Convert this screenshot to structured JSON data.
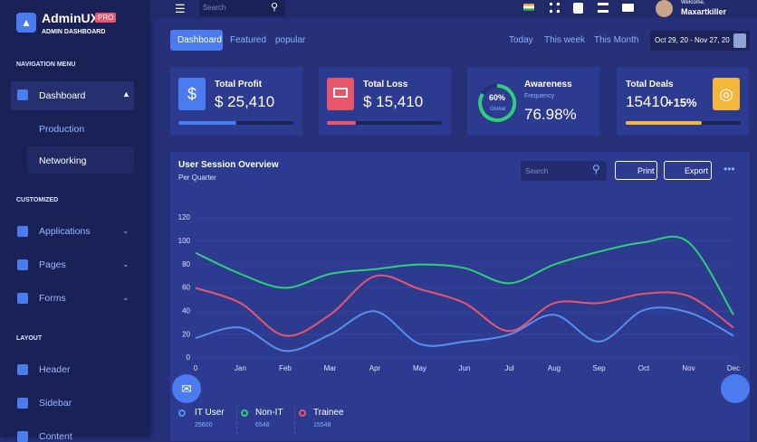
{
  "sidebar": {
    "brand": "AdminUX",
    "badge": "PRO",
    "subtitle": "ADMIN DASHBOARD",
    "sections": [
      {
        "title": "NAVIGATION MENU",
        "items": [
          "Dashboard",
          "Production",
          "Networking"
        ]
      },
      {
        "title": "CUSTOMIZED",
        "items": [
          "Applications",
          "Pages",
          "Forms"
        ]
      },
      {
        "title": "LAYOUT",
        "items": [
          "Header",
          "Sidebar",
          "Content"
        ]
      }
    ]
  },
  "topbar": {
    "search": "Search",
    "welcome": "Welcome,",
    "user": "Maxartkiller"
  },
  "tabs": [
    "Dashboard",
    "Featured",
    "popular"
  ],
  "ranges": [
    "Today",
    "This week",
    "This Month"
  ],
  "date_range": "Oct 29, 20 - Nov 27, 20",
  "cards": [
    {
      "title": "Total Profit",
      "value": "$ 25,410",
      "progress": 50
    },
    {
      "title": "Total Loss",
      "value": "$ 15,410",
      "progress": 25
    },
    {
      "title": "Awareness",
      "subtitle": "Frequency",
      "value": "76.98%",
      "ring": "60%",
      "ring_label": "Global"
    },
    {
      "title": "Total Deals",
      "value": "15410",
      "change": "+15%",
      "progress": 66
    }
  ],
  "chart_card": {
    "title": "User Session Overview",
    "subtitle": "Per Quarter",
    "search": "Search",
    "print": "Print",
    "export": "Export"
  },
  "chart_data": {
    "type": "line",
    "categories": [
      "0",
      "Jan",
      "Feb",
      "Mar",
      "Apr",
      "May",
      "Jun",
      "Jul",
      "Aug",
      "Sep",
      "Oct",
      "Nov",
      "Dec"
    ],
    "series": [
      {
        "name": "IT User",
        "color": "#5b8def",
        "total": 25600,
        "values": [
          17,
          26,
          6,
          20,
          40,
          12,
          14,
          20,
          37,
          14,
          41,
          39,
          19
        ]
      },
      {
        "name": "Non-IT",
        "color": "#2fcf7a",
        "total": 6548,
        "values": [
          90,
          72,
          60,
          72,
          76,
          80,
          77,
          64,
          80,
          91,
          99,
          99,
          37
        ]
      },
      {
        "name": "Trainee",
        "color": "#e8566c",
        "total": 15548,
        "values": [
          60,
          47,
          19,
          37,
          70,
          59,
          47,
          23,
          47,
          47,
          55,
          53,
          26
        ]
      }
    ],
    "ylim": [
      0,
      120
    ],
    "yticks": [
      0,
      20,
      40,
      60,
      80,
      100,
      120
    ],
    "grid": true
  }
}
